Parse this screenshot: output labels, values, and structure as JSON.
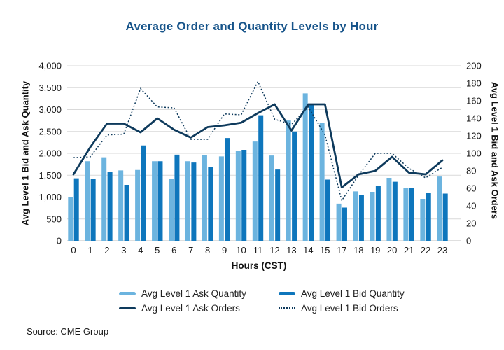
{
  "title": "Average Order and Quantity Levels by Hour",
  "source": "Source: CME Group",
  "axes": {
    "x_title": "Hours (CST)",
    "y_left_title": "Avg Level 1 Bid and Ask Quantity",
    "y_right_title": "Avg Level 1 Bid and Ask Orders"
  },
  "colors": {
    "title_navy": "#17548A",
    "ask_quantity_bar": "#6CB4DF",
    "bid_quantity_bar": "#0E76BC",
    "orders_line": "#0E3A5C",
    "gridline": "#D9D9D9",
    "axis_line": "#BFBFBF",
    "tick_text": "#1A1A1A"
  },
  "chart_data": {
    "type": "bar",
    "subtype": "combo bar+line, dual axis",
    "categories": [
      "0",
      "1",
      "2",
      "3",
      "4",
      "5",
      "6",
      "7",
      "8",
      "9",
      "10",
      "11",
      "12",
      "13",
      "14",
      "15",
      "17",
      "18",
      "19",
      "20",
      "21",
      "22",
      "23"
    ],
    "series": [
      {
        "name": "Avg Level 1 Ask Quantity",
        "type": "bar",
        "axis": "left",
        "color": "#6CB4DF",
        "values": [
          1000,
          1820,
          1910,
          1610,
          1620,
          1820,
          1410,
          1820,
          1960,
          1930,
          2060,
          2270,
          1950,
          2750,
          3370,
          2700,
          850,
          1130,
          1120,
          1440,
          1200,
          960,
          1470
        ]
      },
      {
        "name": "Avg Level 1 Bid Quantity",
        "type": "bar",
        "axis": "left",
        "color": "#0E76BC",
        "values": [
          1430,
          1420,
          1570,
          1280,
          2180,
          1820,
          1970,
          1790,
          1690,
          2350,
          2080,
          2870,
          1630,
          2500,
          3130,
          1400,
          760,
          1040,
          1260,
          1350,
          1200,
          1090,
          1080
        ]
      },
      {
        "name": "Avg Level 1 Ask Orders",
        "type": "line",
        "line_style": "solid",
        "axis": "right",
        "color": "#0E3A5C",
        "values": [
          76,
          107,
          134,
          134,
          124,
          140,
          127,
          118,
          130,
          132,
          135,
          146,
          156,
          126,
          156,
          156,
          61,
          76,
          80,
          96,
          78,
          76,
          92
        ]
      },
      {
        "name": "Avg Level 1 Bid Orders",
        "type": "line",
        "line_style": "dotted",
        "axis": "right",
        "color": "#0E3A5C",
        "values": [
          95,
          96,
          121,
          122,
          174,
          153,
          152,
          116,
          116,
          145,
          144,
          182,
          139,
          133,
          153,
          121,
          46,
          75,
          100,
          100,
          83,
          72,
          84
        ]
      }
    ],
    "title": "Average Order and Quantity Levels by Hour",
    "xlabel": "Hours (CST)",
    "ylabel_left": "Avg Level 1 Bid and Ask Quantity",
    "ylabel_right": "Avg Level 1 Bid and Ask Orders",
    "y_left": {
      "min": 0,
      "max": 4000,
      "step": 500,
      "tick_format": "thousands-comma"
    },
    "y_right": {
      "min": 0,
      "max": 200,
      "step": 20
    },
    "grid": true,
    "legend_position": "bottom"
  }
}
